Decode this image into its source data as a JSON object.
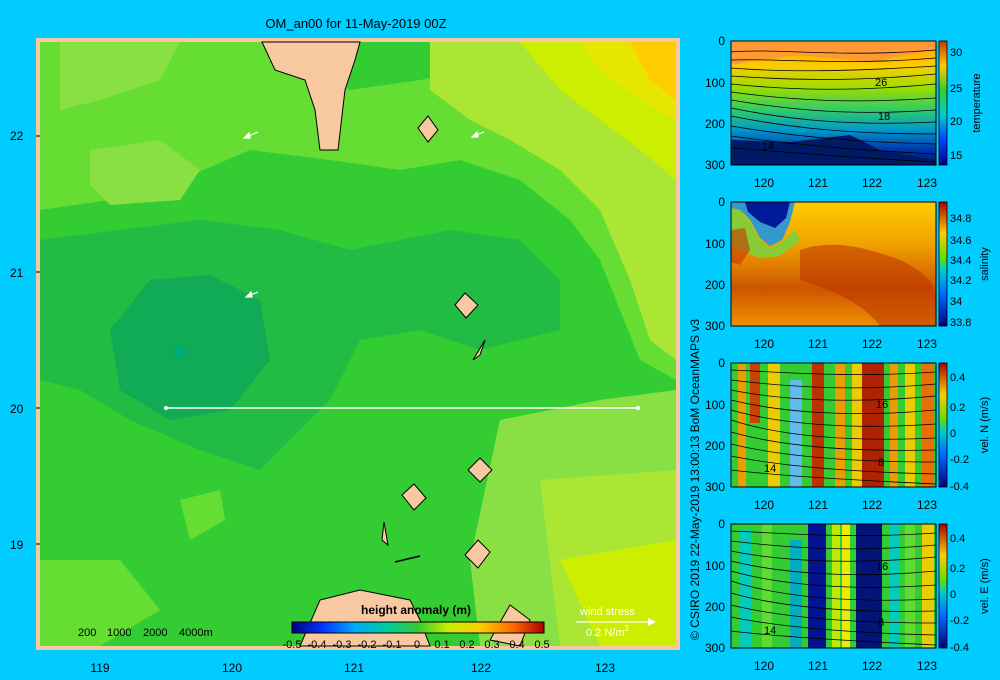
{
  "title": "OM_an00 for 11-May-2019 00Z",
  "map": {
    "lat_ticks": [
      "22",
      "21",
      "20",
      "19"
    ],
    "lon_ticks": [
      "119",
      "120",
      "121",
      "122",
      "123"
    ],
    "depth_legend": [
      "200",
      "1000",
      "2000",
      "4000m"
    ],
    "colorbar": {
      "title": "height anomaly (m)",
      "ticks": [
        "-0.5",
        "-0.4",
        "-0.3",
        "-0.2",
        "-0.1",
        "0",
        "0.1",
        "0.2",
        "0.3",
        "0.4",
        "0.5"
      ]
    },
    "wind_stress": {
      "label": "wind stress",
      "scale": "0.2 N/m",
      "exponent": "2"
    },
    "transect": {
      "lat": 20,
      "lon_start": 119.5,
      "lon_end": 123.2
    }
  },
  "credit": "© CSIRO 2019   22-May-2019 13:00:13 BoM OceanMAPS v3",
  "panels": [
    {
      "id": "temperature",
      "label": "temperature",
      "depth_ticks": [
        "0",
        "100",
        "200",
        "300"
      ],
      "lon_ticks": [
        "120",
        "121",
        "122",
        "123"
      ],
      "cbar_ticks": [
        "30",
        "25",
        "20",
        "15"
      ],
      "contour_labels": [
        "26",
        "18",
        "14"
      ]
    },
    {
      "id": "salinity",
      "label": "salinity",
      "depth_ticks": [
        "0",
        "100",
        "200",
        "300"
      ],
      "lon_ticks": [
        "120",
        "121",
        "122",
        "123"
      ],
      "cbar_ticks": [
        "34.8",
        "34.6",
        "34.4",
        "34.2",
        "34",
        "33.8"
      ],
      "contour_labels": []
    },
    {
      "id": "vel-n",
      "label": "vel. N (m/s)",
      "depth_ticks": [
        "0",
        "100",
        "200",
        "300"
      ],
      "lon_ticks": [
        "120",
        "121",
        "122",
        "123"
      ],
      "cbar_ticks": [
        "0.4",
        "0.2",
        "0",
        "-0.2",
        "-0.4"
      ],
      "contour_labels": [
        "16",
        "14",
        "8"
      ]
    },
    {
      "id": "vel-e",
      "label": "vel. E (m/s)",
      "depth_ticks": [
        "0",
        "100",
        "200",
        "300"
      ],
      "lon_ticks": [
        "120",
        "121",
        "122",
        "123"
      ],
      "cbar_ticks": [
        "0.4",
        "0.2",
        "0",
        "-0.2",
        "-0.4"
      ],
      "contour_labels": [
        "16",
        "14",
        "8"
      ]
    }
  ],
  "colors": {
    "background": "#00ccff",
    "land": "#f8c8a0",
    "ocean_base": "#33cc33"
  }
}
